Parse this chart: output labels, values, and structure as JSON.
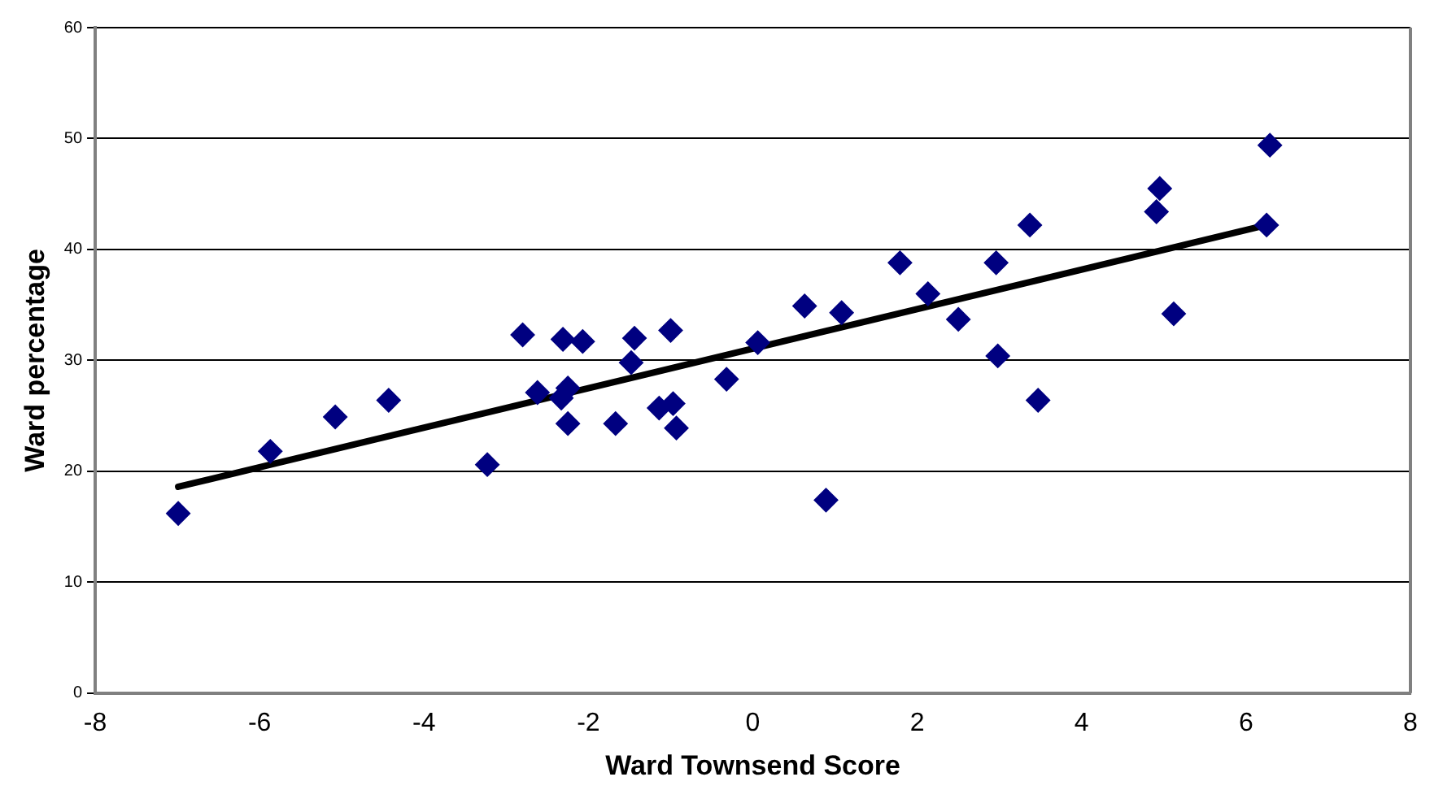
{
  "chart_data": {
    "type": "scatter",
    "xlabel": "Ward Townsend Score",
    "ylabel": "Ward percentage",
    "xlim": [
      -8,
      8
    ],
    "xticks": [
      -8,
      -6,
      -4,
      -2,
      0,
      2,
      4,
      6,
      8
    ],
    "ylim": [
      0,
      60
    ],
    "yticks": [
      0,
      10,
      20,
      30,
      40,
      50,
      60
    ],
    "grid": "y",
    "marker": "diamond",
    "legend": false,
    "series": [
      {
        "color": "#000080",
        "x": [
          -6.99,
          -5.87,
          -5.08,
          -4.43,
          -3.23,
          -2.8,
          -2.62,
          -2.31,
          -2.33,
          -2.25,
          -2.25,
          -2.07,
          -1.67,
          -1.48,
          -1.44,
          -1.14,
          -1.0,
          -0.97,
          -0.93,
          -0.32,
          0.06,
          0.63,
          0.89,
          1.08,
          1.79,
          2.13,
          2.5,
          2.96,
          2.98,
          3.37,
          3.47,
          4.91,
          4.95,
          5.12,
          6.25,
          6.29
        ],
        "values": [
          16.2,
          21.8,
          24.9,
          26.4,
          20.6,
          32.3,
          27.1,
          31.9,
          26.6,
          27.5,
          24.3,
          31.7,
          24.3,
          29.8,
          32.0,
          25.7,
          32.7,
          26.1,
          23.9,
          28.3,
          31.6,
          34.9,
          17.4,
          34.3,
          38.8,
          36.0,
          33.7,
          38.8,
          30.4,
          42.2,
          26.4,
          43.4,
          45.5,
          34.2,
          42.2,
          49.4
        ]
      },
      {
        "type": "line",
        "color": "#000000",
        "marker": "none",
        "x": [
          -6.99,
          6.25
        ],
        "values": [
          18.6,
          42.2
        ]
      }
    ]
  }
}
